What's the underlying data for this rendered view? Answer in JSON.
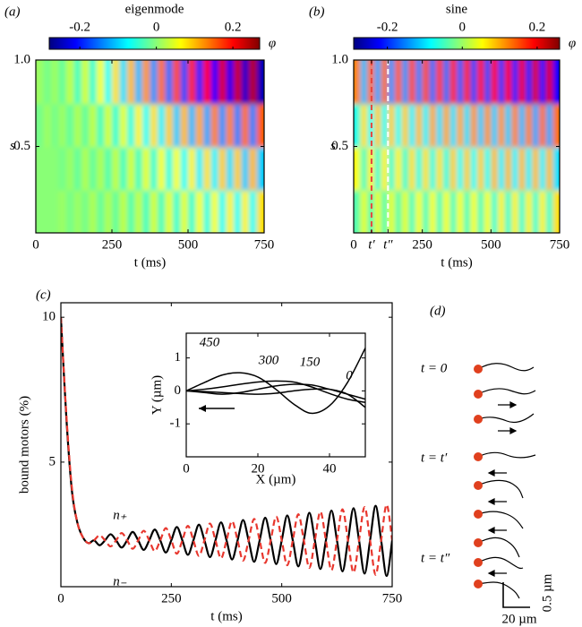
{
  "chart_data": [
    {
      "type": "heatmap",
      "panel_label": "(a)",
      "title": "eigenmode",
      "colormap": "jet",
      "clim": [
        -0.28,
        0.27
      ],
      "cticks": [
        -0.2,
        0,
        0.2
      ],
      "colorbar_label": "φ",
      "xlabel": "t (ms)",
      "ylabel": "s",
      "xlim": [
        0,
        750
      ],
      "ylim": [
        0,
        1
      ],
      "xticks": [
        0,
        250,
        500,
        750
      ],
      "yticks": [
        0.5,
        {
          "value": 1,
          "label": "1.0"
        }
      ],
      "x": [
        12.5,
        37.5,
        62.5,
        87.5,
        112.5,
        137.5,
        162.5,
        187.5,
        212.5,
        237.5,
        262.5,
        287.5,
        312.5,
        337.5,
        362.5,
        387.5,
        412.5,
        437.5,
        462.5,
        487.5,
        512.5,
        537.5,
        562.5,
        587.5,
        612.5,
        637.5,
        662.5,
        687.5,
        712.5,
        737.5
      ],
      "y": [
        0.125,
        0.375,
        0.625,
        0.875
      ],
      "z": [
        [
          0.0,
          0.0,
          0.0,
          0.01,
          -0.01,
          0.01,
          -0.01,
          0.02,
          -0.02,
          0.02,
          -0.02,
          0.03,
          -0.03,
          0.03,
          -0.04,
          0.04,
          -0.04,
          0.05,
          -0.05,
          0.05,
          -0.05,
          0.06,
          -0.06,
          0.06,
          -0.07,
          0.07,
          -0.07,
          0.07,
          -0.07,
          0.08
        ],
        [
          0.0,
          0.0,
          0.0,
          -0.01,
          0.01,
          -0.02,
          0.02,
          -0.02,
          0.02,
          -0.03,
          0.03,
          -0.04,
          0.04,
          -0.04,
          0.05,
          -0.05,
          0.06,
          -0.06,
          0.06,
          -0.07,
          0.07,
          -0.08,
          0.08,
          -0.08,
          0.09,
          -0.09,
          0.09,
          -0.1,
          0.1,
          -0.1
        ],
        [
          -0.01,
          0.01,
          -0.01,
          0.01,
          -0.02,
          0.02,
          -0.02,
          0.03,
          -0.04,
          0.04,
          -0.05,
          0.05,
          -0.06,
          0.07,
          -0.07,
          0.08,
          -0.08,
          0.09,
          -0.1,
          0.1,
          -0.11,
          0.11,
          -0.12,
          0.13,
          -0.13,
          0.13,
          -0.14,
          0.14,
          -0.14,
          0.15
        ],
        [
          0.01,
          -0.01,
          0.01,
          -0.02,
          0.03,
          -0.04,
          0.04,
          -0.05,
          0.06,
          -0.07,
          0.08,
          -0.09,
          0.1,
          -0.11,
          0.12,
          -0.13,
          0.14,
          -0.15,
          0.16,
          -0.17,
          0.18,
          -0.19,
          0.2,
          -0.21,
          0.22,
          -0.22,
          0.23,
          -0.24,
          0.24,
          -0.25
        ]
      ]
    },
    {
      "type": "heatmap",
      "panel_label": "(b)",
      "title": "sine",
      "colormap": "jet",
      "clim": [
        -0.29,
        0.26
      ],
      "cticks": [
        -0.2,
        0,
        0.2
      ],
      "colorbar_label": "φ",
      "xlabel": "t (ms)",
      "ylabel": "s",
      "xlim": [
        0,
        750
      ],
      "ylim": [
        0,
        1
      ],
      "xticks": [
        0,
        {
          "value": 65,
          "label": "t′"
        },
        {
          "value": 125,
          "label": "t″"
        },
        250,
        500,
        750
      ],
      "yticks": [
        0.5,
        {
          "value": 1,
          "label": "1.0"
        }
      ],
      "vlines": [
        {
          "x": 65,
          "color": "#e8453c"
        },
        {
          "x": 125,
          "color": "#ffffff"
        }
      ],
      "x": [
        12.5,
        37.5,
        62.5,
        87.5,
        112.5,
        137.5,
        162.5,
        187.5,
        212.5,
        237.5,
        262.5,
        287.5,
        312.5,
        337.5,
        362.5,
        387.5,
        412.5,
        437.5,
        462.5,
        487.5,
        512.5,
        537.5,
        562.5,
        587.5,
        612.5,
        637.5,
        662.5,
        687.5,
        712.5,
        737.5
      ],
      "y": [
        0.125,
        0.375,
        0.625,
        0.875
      ],
      "z": [
        [
          -0.04,
          0.04,
          -0.04,
          0.04,
          -0.04,
          0.04,
          -0.04,
          0.04,
          -0.05,
          0.05,
          -0.05,
          0.05,
          -0.05,
          0.05,
          -0.05,
          0.05,
          -0.05,
          0.05,
          -0.05,
          0.05,
          -0.06,
          0.06,
          -0.06,
          0.06,
          -0.06,
          0.06,
          -0.06,
          0.06,
          -0.06,
          0.07
        ],
        [
          0.05,
          -0.05,
          0.06,
          -0.06,
          0.06,
          -0.06,
          0.06,
          -0.06,
          0.07,
          -0.07,
          0.07,
          -0.07,
          0.07,
          -0.07,
          0.08,
          -0.08,
          0.08,
          -0.08,
          0.08,
          -0.08,
          0.09,
          -0.09,
          0.09,
          -0.09,
          0.09,
          -0.09,
          0.09,
          -0.09,
          0.09,
          -0.1
        ],
        [
          -0.07,
          0.07,
          -0.08,
          0.08,
          -0.08,
          0.08,
          -0.08,
          0.08,
          -0.09,
          0.09,
          -0.09,
          0.1,
          -0.1,
          0.1,
          -0.1,
          0.1,
          -0.1,
          0.11,
          -0.11,
          0.11,
          -0.11,
          0.11,
          -0.11,
          0.12,
          -0.12,
          0.12,
          -0.13,
          0.13,
          -0.13,
          0.13
        ],
        [
          0.12,
          -0.12,
          0.13,
          -0.13,
          0.13,
          -0.14,
          0.14,
          -0.14,
          0.15,
          -0.15,
          0.15,
          -0.16,
          0.16,
          -0.16,
          0.17,
          -0.17,
          0.17,
          -0.18,
          0.18,
          -0.18,
          0.19,
          -0.19,
          0.19,
          -0.2,
          0.2,
          -0.2,
          0.21,
          -0.21,
          0.21,
          -0.22
        ]
      ]
    },
    {
      "type": "line",
      "panel_label": "(c)",
      "xlabel": "t (ms)",
      "ylabel": "bound motors (%)",
      "xlim": [
        0,
        750
      ],
      "ylim": [
        0.7,
        10.5
      ],
      "xticks": [
        0,
        250,
        500,
        750
      ],
      "yticks": [
        5,
        10
      ],
      "x": [
        0,
        12.5,
        25,
        37.5,
        50,
        62.5,
        75,
        87.5,
        100,
        112.5,
        125,
        137.5,
        150,
        162.5,
        175,
        187.5,
        200,
        212.5,
        225,
        237.5,
        250,
        262.5,
        275,
        287.5,
        300,
        312.5,
        325,
        337.5,
        350,
        362.5,
        375,
        387.5,
        400,
        412.5,
        425,
        437.5,
        450,
        462.5,
        475,
        487.5,
        500,
        512.5,
        525,
        537.5,
        550,
        562.5,
        575,
        587.5,
        600,
        612.5,
        625,
        637.5,
        650,
        662.5,
        675,
        687.5,
        700,
        712.5,
        725,
        737.5,
        750
      ],
      "series": [
        {
          "name": "n₊",
          "color": "#000000",
          "dashed": false,
          "values": [
            10,
            6.5,
            4.0,
            2.9,
            2.4,
            2.2,
            2.3,
            2.13,
            2.3,
            2.51,
            2.3,
            2.05,
            2.3,
            2.59,
            2.3,
            1.97,
            2.3,
            2.67,
            2.3,
            1.88,
            2.3,
            2.76,
            2.3,
            1.8,
            2.3,
            2.84,
            2.3,
            1.72,
            2.3,
            2.92,
            2.3,
            1.64,
            2.3,
            3.0,
            2.3,
            1.56,
            2.3,
            3.08,
            2.3,
            1.48,
            2.3,
            3.16,
            2.3,
            1.4,
            2.3,
            3.25,
            2.3,
            1.31,
            2.3,
            3.33,
            2.3,
            1.23,
            2.3,
            3.41,
            2.3,
            1.15,
            2.3,
            3.49,
            2.3,
            1.07,
            2.3
          ]
        },
        {
          "name": "n₋",
          "color": "#e8372e",
          "dashed": true,
          "values": [
            10,
            6.6,
            4.1,
            2.9,
            2.4,
            2.2,
            2.3,
            2.47,
            2.3,
            2.09,
            2.3,
            2.55,
            2.3,
            2.01,
            2.3,
            2.63,
            2.3,
            1.93,
            2.3,
            2.72,
            2.3,
            1.84,
            2.3,
            2.8,
            2.3,
            1.76,
            2.3,
            2.88,
            2.3,
            1.68,
            2.3,
            2.96,
            2.3,
            1.6,
            2.3,
            3.04,
            2.3,
            1.52,
            2.3,
            3.12,
            2.3,
            1.44,
            2.3,
            3.2,
            2.3,
            1.35,
            2.3,
            3.29,
            2.3,
            1.27,
            2.3,
            3.37,
            2.3,
            1.19,
            2.3,
            3.45,
            2.3,
            1.11,
            2.3,
            3.53,
            2.3
          ]
        }
      ]
    },
    {
      "type": "line",
      "xlabel": "X (µm)",
      "ylabel": "Y (µm)",
      "xlim": [
        0,
        50
      ],
      "ylim": [
        -2.0,
        1.75
      ],
      "xticks": [
        0,
        20,
        40
      ],
      "yticks": [
        -1,
        0,
        1
      ],
      "x": [
        0,
        5,
        10,
        15,
        20,
        25,
        30,
        35,
        40,
        45,
        50
      ],
      "series": [
        {
          "name": "450",
          "color": "#000000",
          "dashed": false,
          "values": [
            0,
            0.25,
            0.48,
            0.55,
            0.42,
            0.05,
            -0.4,
            -0.68,
            -0.45,
            0.25,
            1.3
          ]
        },
        {
          "name": "300",
          "color": "#000000",
          "dashed": false,
          "values": [
            0,
            0.05,
            0.12,
            0.2,
            0.27,
            0.3,
            0.27,
            0.12,
            -0.08,
            -0.25,
            -0.35
          ]
        },
        {
          "name": "150",
          "color": "#000000",
          "dashed": false,
          "values": [
            0,
            -0.05,
            -0.1,
            -0.05,
            0.05,
            0.15,
            0.2,
            0.18,
            0.05,
            -0.1,
            -0.25
          ]
        },
        {
          "name": "0",
          "color": "#000000",
          "dashed": false,
          "values": [
            0,
            -0.02,
            -0.05,
            -0.08,
            -0.1,
            -0.07,
            0,
            0.05,
            0.05,
            -0.1,
            -0.5
          ]
        }
      ]
    }
  ],
  "panel_d": {
    "panel_label": "(d)",
    "times": [
      "t = 0",
      "t = t′",
      "t = t″"
    ],
    "scale_y": "0.5 µm",
    "scale_x": "20 µm"
  }
}
